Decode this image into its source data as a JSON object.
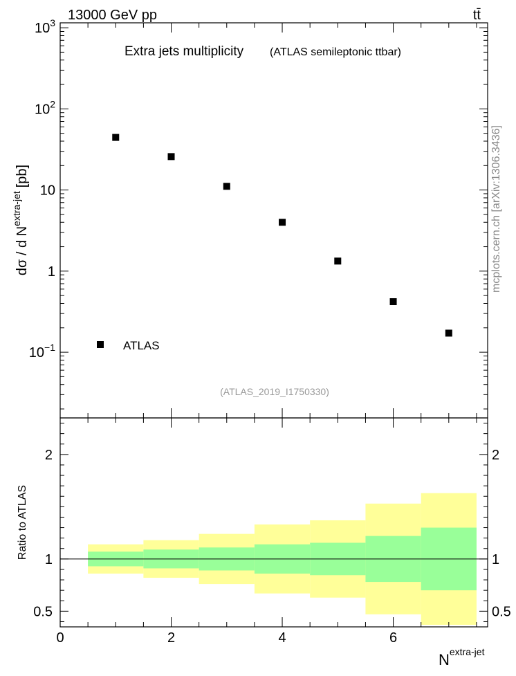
{
  "header": {
    "energy_label": "13000 GeV pp",
    "process_label": "tt̄"
  },
  "side_label": "mcplots.cern.ch [arXiv:1306.3436]",
  "chart_data": [
    {
      "type": "scatter",
      "title": "Extra jets multiplicity",
      "subtitle": "(ATLAS semileptonic ttbar)",
      "analysis_id": "(ATLAS_2019_I1750330)",
      "ylabel_main": "dσ / d N",
      "ylabel_sup": "extra-jet",
      "ylabel_unit": "[pb]",
      "yscale": "log",
      "ylim": [
        0.0155,
        1150
      ],
      "xlim": [
        0,
        7.7
      ],
      "y_ticks": [
        {
          "value": 1000,
          "base": "10",
          "exp": "3"
        },
        {
          "value": 100,
          "base": "10",
          "exp": "2"
        },
        {
          "value": 10,
          "base": "10",
          "exp": ""
        },
        {
          "value": 1,
          "base": "1",
          "exp": ""
        },
        {
          "value": 0.1,
          "base": "10",
          "exp": "−1"
        }
      ],
      "legend": {
        "position": "bottom-left",
        "entries": [
          "ATLAS"
        ]
      },
      "series": [
        {
          "name": "ATLAS",
          "x": [
            1,
            2,
            3,
            4,
            5,
            6,
            7
          ],
          "y": [
            44.5,
            25.8,
            11.1,
            4.0,
            1.33,
            0.42,
            0.172
          ]
        }
      ]
    },
    {
      "type": "area",
      "ylabel": "Ratio to ATLAS",
      "xlabel": "N",
      "xlabel_sup": "extra-jet",
      "ylim": [
        0.35,
        2.35
      ],
      "xlim": [
        0,
        7.7
      ],
      "x_ticks": [
        0,
        2,
        4,
        6
      ],
      "y_ticks": [
        0.5,
        1,
        2
      ],
      "reference_line": 1,
      "bins": [
        {
          "lo": 0.5,
          "hi": 1.5,
          "stat_lo": 0.93,
          "stat_hi": 1.07,
          "total_lo": 0.86,
          "total_hi": 1.14
        },
        {
          "lo": 1.5,
          "hi": 2.5,
          "stat_lo": 0.91,
          "stat_hi": 1.09,
          "total_lo": 0.82,
          "total_hi": 1.18
        },
        {
          "lo": 2.5,
          "hi": 3.5,
          "stat_lo": 0.89,
          "stat_hi": 1.11,
          "total_lo": 0.76,
          "total_hi": 1.24
        },
        {
          "lo": 3.5,
          "hi": 4.5,
          "stat_lo": 0.86,
          "stat_hi": 1.14,
          "total_lo": 0.67,
          "total_hi": 1.33
        },
        {
          "lo": 4.5,
          "hi": 5.5,
          "stat_lo": 0.845,
          "stat_hi": 1.155,
          "total_lo": 0.63,
          "total_hi": 1.37
        },
        {
          "lo": 5.5,
          "hi": 6.5,
          "stat_lo": 0.78,
          "stat_hi": 1.22,
          "total_lo": 0.47,
          "total_hi": 1.53
        },
        {
          "lo": 6.5,
          "hi": 7.5,
          "stat_lo": 0.7,
          "stat_hi": 1.3,
          "total_lo": 0.37,
          "total_hi": 1.63
        }
      ],
      "colors": {
        "stat": "#99ff99",
        "total": "#ffff99"
      }
    }
  ]
}
